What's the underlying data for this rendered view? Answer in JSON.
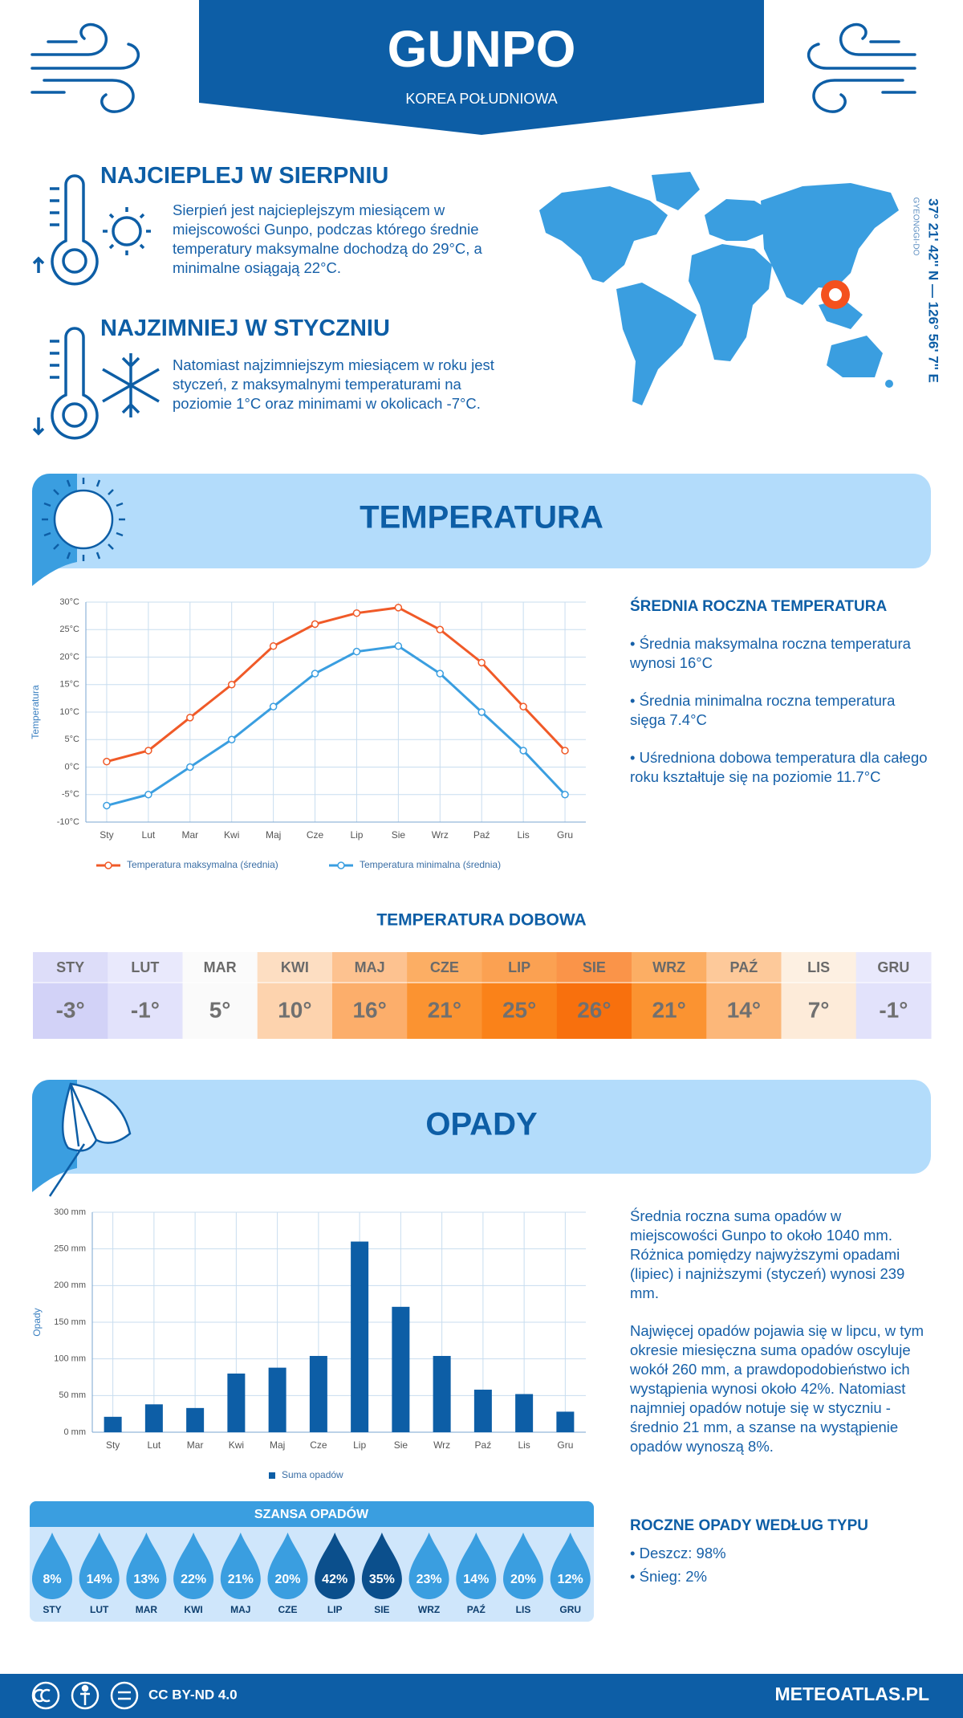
{
  "header": {
    "title": "GUNPO",
    "subtitle": "KOREA POŁUDNIOWA"
  },
  "hottest": {
    "title": "NAJCIEPLEJ W SIERPNIU",
    "text": "Sierpień jest najcieplejszym miesiącem w miejscowości Gunpo, podczas którego średnie temperatury maksymalne dochodzą do 29°C, a minimalne osiągają 22°C."
  },
  "coldest": {
    "title": "NAJZIMNIEJ W STYCZNIU",
    "text": "Natomiast najzimniejszym miesiącem w roku jest styczeń, z maksymalnymi temperaturami na poziomie 1°C oraz minimami w okolicach -7°C."
  },
  "location": {
    "coordinates": "37° 21' 42'' N — 126° 56' 7'' E",
    "region": "GYEONGGI-DO"
  },
  "temperature": {
    "banner": "TEMPERATURA",
    "stats_title": "ŚREDNIA ROCZNA TEMPERATURA",
    "stats": [
      "• Średnia maksymalna roczna temperatura wynosi 16°C",
      "• Średnia minimalna roczna temperatura sięga 7.4°C",
      "• Uśredniona dobowa temperatura dla całego roku kształtuje się na poziomie 11.7°C"
    ],
    "daily_title": "TEMPERATURA DOBOWA",
    "daily": {
      "months": [
        "STY",
        "LUT",
        "MAR",
        "KWI",
        "MAJ",
        "CZE",
        "LIP",
        "SIE",
        "WRZ",
        "PAŹ",
        "LIS",
        "GRU"
      ],
      "values": [
        "-3°",
        "-1°",
        "5°",
        "10°",
        "16°",
        "21°",
        "25°",
        "26°",
        "21°",
        "14°",
        "7°",
        "-1°"
      ],
      "colors": [
        "#d2d2f7",
        "#e2e2fb",
        "#fafafa",
        "#fdd3ae",
        "#fcae6b",
        "#fb9331",
        "#fa8219",
        "#f8700d",
        "#fb9331",
        "#fcb779",
        "#fdebd9",
        "#e2e2fb"
      ]
    }
  },
  "chart_data": [
    {
      "type": "line",
      "y_label": "Temperatura",
      "categories": [
        "Sty",
        "Lut",
        "Mar",
        "Kwi",
        "Maj",
        "Cze",
        "Lip",
        "Sie",
        "Wrz",
        "Paź",
        "Lis",
        "Gru"
      ],
      "series": [
        {
          "name": "Temperatura maksymalna (średnia)",
          "color": "#f05a28",
          "values": [
            1,
            3,
            9,
            15,
            22,
            26,
            28,
            29,
            25,
            19,
            11,
            3
          ]
        },
        {
          "name": "Temperatura minimalna (średnia)",
          "color": "#3a9ee0",
          "values": [
            -7,
            -5,
            0,
            5,
            11,
            17,
            21,
            22,
            17,
            10,
            3,
            -5
          ]
        }
      ],
      "ylim": [
        -10,
        30
      ],
      "yticks": [
        {
          "value": -10,
          "label": "-10°C"
        },
        {
          "value": -5,
          "label": "-5°C"
        },
        {
          "value": 0,
          "label": "0°C"
        },
        {
          "value": 5,
          "label": "5°C"
        },
        {
          "value": 10,
          "label": "10°C"
        },
        {
          "value": 15,
          "label": "15°C"
        },
        {
          "value": 20,
          "label": "20°C"
        },
        {
          "value": 25,
          "label": "25°C"
        },
        {
          "value": 30,
          "label": "30°C"
        }
      ],
      "grid": true
    },
    {
      "type": "bar",
      "y_label": "Opady",
      "categories": [
        "Sty",
        "Lut",
        "Mar",
        "Kwi",
        "Maj",
        "Cze",
        "Lip",
        "Sie",
        "Wrz",
        "Paź",
        "Lis",
        "Gru"
      ],
      "series": [
        {
          "name": "Suma opadów",
          "color": "#0d5ea6",
          "values": [
            21,
            38,
            33,
            80,
            88,
            104,
            260,
            171,
            104,
            58,
            52,
            28
          ]
        }
      ],
      "ylim": [
        0,
        300
      ],
      "yticks": [
        {
          "value": 0,
          "label": "0 mm"
        },
        {
          "value": 50,
          "label": "50 mm"
        },
        {
          "value": 100,
          "label": "100 mm"
        },
        {
          "value": 150,
          "label": "150 mm"
        },
        {
          "value": 200,
          "label": "200 mm"
        },
        {
          "value": 250,
          "label": "250 mm"
        },
        {
          "value": 300,
          "label": "300 mm"
        }
      ],
      "grid": true
    }
  ],
  "precipitation": {
    "banner": "OPADY",
    "text": [
      "Średnia roczna suma opadów w miejscowości Gunpo to około 1040 mm. Różnica pomiędzy najwyższymi opadami (lipiec) i najniższymi (styczeń) wynosi 239 mm.",
      "Najwięcej opadów pojawia się w lipcu, w tym okresie miesięczna suma opadów oscyluje wokół 260 mm, a prawdopodobieństwo ich wystąpienia wynosi około 42%. Natomiast najmniej opadów notuje się w styczniu - średnio 21 mm, a szanse na wystąpienie opadów wynoszą 8%."
    ],
    "chance": {
      "title": "SZANSA OPADÓW",
      "months": [
        "STY",
        "LUT",
        "MAR",
        "KWI",
        "MAJ",
        "CZE",
        "LIP",
        "SIE",
        "WRZ",
        "PAŹ",
        "LIS",
        "GRU"
      ],
      "values": [
        8,
        14,
        13,
        22,
        21,
        20,
        42,
        35,
        23,
        14,
        20,
        12
      ],
      "value_labels": [
        "8%",
        "14%",
        "13%",
        "22%",
        "21%",
        "20%",
        "42%",
        "35%",
        "23%",
        "14%",
        "20%",
        "12%"
      ]
    },
    "type_title": "ROCZNE OPADY WEDŁUG TYPU",
    "types": [
      "• Deszcz: 98%",
      "• Śnieg: 2%"
    ]
  },
  "footer": {
    "license": "CC BY-ND 4.0",
    "site": "METEOATLAS.PL"
  }
}
